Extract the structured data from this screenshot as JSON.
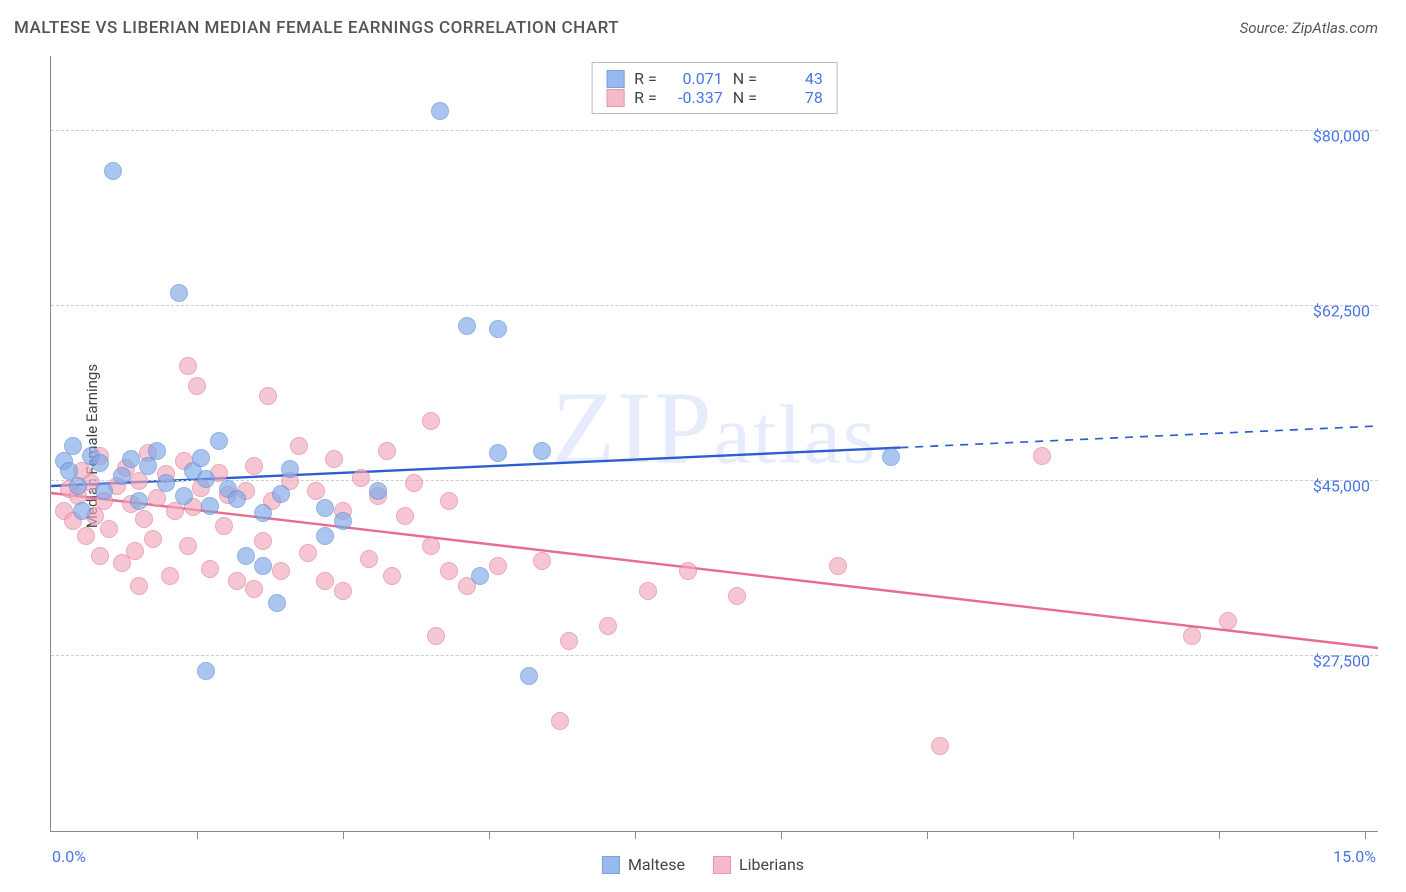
{
  "title": "MALTESE VS LIBERIAN MEDIAN FEMALE EARNINGS CORRELATION CHART",
  "source_prefix": "Source: ",
  "source": "ZipAtlas.com",
  "watermark": "ZIPatlas",
  "y_axis": {
    "label": "Median Female Earnings"
  },
  "x_axis": {
    "min_label": "0.0%",
    "max_label": "15.0%"
  },
  "chart": {
    "type": "scatter",
    "xlim": [
      0,
      15
    ],
    "ylim": [
      10000,
      87500
    ],
    "x_ticks": [
      1.65,
      3.3,
      4.95,
      6.6,
      8.25,
      9.9,
      11.55,
      13.2,
      14.85
    ],
    "y_gridlines": [
      {
        "value": 27500,
        "label": "$27,500"
      },
      {
        "value": 45000,
        "label": "$45,000"
      },
      {
        "value": 62500,
        "label": "$62,500"
      },
      {
        "value": 80000,
        "label": "$80,000"
      }
    ],
    "background_color": "#ffffff",
    "grid_color": "#cccccc",
    "axis_color": "#888888",
    "value_color": "#4a74e8",
    "marker_radius": 9,
    "marker_fill_opacity": 0.3,
    "marker_stroke_width": 1.4
  },
  "series": [
    {
      "name": "Maltese",
      "label": "Maltese",
      "color_fill": "#7ea8e8",
      "color_stroke": "#5a8ad8",
      "R": "0.071",
      "N": "43",
      "trend": {
        "y_at_xmin": 44500,
        "y_at_xmax": 50500,
        "solid_until_x": 9.6,
        "line_color": "#2d5dd0",
        "line_width": 2.4
      },
      "points": [
        {
          "x": 0.15,
          "y": 47000
        },
        {
          "x": 0.2,
          "y": 46000
        },
        {
          "x": 0.3,
          "y": 44500
        },
        {
          "x": 0.25,
          "y": 48500
        },
        {
          "x": 0.35,
          "y": 42000
        },
        {
          "x": 0.45,
          "y": 47500
        },
        {
          "x": 0.55,
          "y": 46800
        },
        {
          "x": 0.6,
          "y": 44000
        },
        {
          "x": 0.7,
          "y": 76000
        },
        {
          "x": 0.8,
          "y": 45500
        },
        {
          "x": 0.9,
          "y": 47200
        },
        {
          "x": 1.0,
          "y": 43000
        },
        {
          "x": 1.1,
          "y": 46500
        },
        {
          "x": 1.2,
          "y": 48000
        },
        {
          "x": 1.3,
          "y": 44800
        },
        {
          "x": 1.45,
          "y": 63800
        },
        {
          "x": 1.5,
          "y": 43500
        },
        {
          "x": 1.6,
          "y": 46000
        },
        {
          "x": 1.7,
          "y": 47300
        },
        {
          "x": 1.75,
          "y": 45200
        },
        {
          "x": 1.75,
          "y": 26000
        },
        {
          "x": 1.8,
          "y": 42500
        },
        {
          "x": 1.9,
          "y": 49000
        },
        {
          "x": 2.0,
          "y": 44200
        },
        {
          "x": 2.1,
          "y": 43200
        },
        {
          "x": 2.2,
          "y": 37500
        },
        {
          "x": 2.4,
          "y": 41800
        },
        {
          "x": 2.4,
          "y": 36500
        },
        {
          "x": 2.55,
          "y": 32800
        },
        {
          "x": 2.6,
          "y": 43700
        },
        {
          "x": 2.7,
          "y": 46200
        },
        {
          "x": 3.1,
          "y": 42300
        },
        {
          "x": 3.1,
          "y": 39500
        },
        {
          "x": 3.3,
          "y": 41000
        },
        {
          "x": 3.7,
          "y": 44000
        },
        {
          "x": 4.4,
          "y": 82000
        },
        {
          "x": 4.7,
          "y": 60500
        },
        {
          "x": 4.85,
          "y": 35500
        },
        {
          "x": 5.05,
          "y": 60200
        },
        {
          "x": 5.05,
          "y": 47800
        },
        {
          "x": 5.4,
          "y": 25500
        },
        {
          "x": 5.55,
          "y": 48000
        },
        {
          "x": 9.5,
          "y": 47400
        }
      ]
    },
    {
      "name": "Liberians",
      "label": "Liberians",
      "color_fill": "#f2a9bb",
      "color_stroke": "#e07d9a",
      "R": "-0.337",
      "N": "78",
      "trend": {
        "y_at_xmin": 43800,
        "y_at_xmax": 28300,
        "solid_until_x": 15,
        "line_color": "#e86b93",
        "line_width": 2.4
      },
      "points": [
        {
          "x": 0.15,
          "y": 42000
        },
        {
          "x": 0.2,
          "y": 44200
        },
        {
          "x": 0.25,
          "y": 41000
        },
        {
          "x": 0.3,
          "y": 43500
        },
        {
          "x": 0.35,
          "y": 46000
        },
        {
          "x": 0.4,
          "y": 39500
        },
        {
          "x": 0.45,
          "y": 44800
        },
        {
          "x": 0.5,
          "y": 41500
        },
        {
          "x": 0.55,
          "y": 37500
        },
        {
          "x": 0.55,
          "y": 47500
        },
        {
          "x": 0.6,
          "y": 43000
        },
        {
          "x": 0.65,
          "y": 40200
        },
        {
          "x": 0.75,
          "y": 44500
        },
        {
          "x": 0.8,
          "y": 36800
        },
        {
          "x": 0.85,
          "y": 46300
        },
        {
          "x": 0.9,
          "y": 42700
        },
        {
          "x": 0.95,
          "y": 38000
        },
        {
          "x": 1.0,
          "y": 45000
        },
        {
          "x": 1.0,
          "y": 34500
        },
        {
          "x": 1.05,
          "y": 41200
        },
        {
          "x": 1.1,
          "y": 47800
        },
        {
          "x": 1.15,
          "y": 39200
        },
        {
          "x": 1.2,
          "y": 43300
        },
        {
          "x": 1.3,
          "y": 45700
        },
        {
          "x": 1.35,
          "y": 35500
        },
        {
          "x": 1.4,
          "y": 42000
        },
        {
          "x": 1.5,
          "y": 47000
        },
        {
          "x": 1.55,
          "y": 38500
        },
        {
          "x": 1.55,
          "y": 56500
        },
        {
          "x": 1.6,
          "y": 42400
        },
        {
          "x": 1.65,
          "y": 54500
        },
        {
          "x": 1.7,
          "y": 44300
        },
        {
          "x": 1.8,
          "y": 36200
        },
        {
          "x": 1.9,
          "y": 45800
        },
        {
          "x": 1.95,
          "y": 40500
        },
        {
          "x": 2.0,
          "y": 43600
        },
        {
          "x": 2.1,
          "y": 35000
        },
        {
          "x": 2.2,
          "y": 44000
        },
        {
          "x": 2.3,
          "y": 46500
        },
        {
          "x": 2.3,
          "y": 34200
        },
        {
          "x": 2.4,
          "y": 39000
        },
        {
          "x": 2.45,
          "y": 53500
        },
        {
          "x": 2.5,
          "y": 43000
        },
        {
          "x": 2.6,
          "y": 36000
        },
        {
          "x": 2.7,
          "y": 45000
        },
        {
          "x": 2.8,
          "y": 48500
        },
        {
          "x": 2.9,
          "y": 37800
        },
        {
          "x": 3.0,
          "y": 44000
        },
        {
          "x": 3.1,
          "y": 35000
        },
        {
          "x": 3.2,
          "y": 47200
        },
        {
          "x": 3.3,
          "y": 42000
        },
        {
          "x": 3.3,
          "y": 34000
        },
        {
          "x": 3.5,
          "y": 45300
        },
        {
          "x": 3.6,
          "y": 37200
        },
        {
          "x": 3.7,
          "y": 43500
        },
        {
          "x": 3.8,
          "y": 48000
        },
        {
          "x": 3.85,
          "y": 35500
        },
        {
          "x": 4.0,
          "y": 41500
        },
        {
          "x": 4.1,
          "y": 44800
        },
        {
          "x": 4.3,
          "y": 38500
        },
        {
          "x": 4.3,
          "y": 51000
        },
        {
          "x": 4.35,
          "y": 29500
        },
        {
          "x": 4.5,
          "y": 36000
        },
        {
          "x": 4.5,
          "y": 43000
        },
        {
          "x": 4.7,
          "y": 34500
        },
        {
          "x": 5.05,
          "y": 36500
        },
        {
          "x": 5.55,
          "y": 37000
        },
        {
          "x": 5.75,
          "y": 21000
        },
        {
          "x": 5.85,
          "y": 29000
        },
        {
          "x": 6.3,
          "y": 30500
        },
        {
          "x": 6.75,
          "y": 34000
        },
        {
          "x": 7.2,
          "y": 36000
        },
        {
          "x": 7.75,
          "y": 33500
        },
        {
          "x": 8.9,
          "y": 36500
        },
        {
          "x": 10.05,
          "y": 18500
        },
        {
          "x": 11.2,
          "y": 47500
        },
        {
          "x": 12.9,
          "y": 29500
        },
        {
          "x": 13.3,
          "y": 31000
        }
      ]
    }
  ],
  "stats_legend": {
    "r_label": "R =",
    "n_label": "N ="
  }
}
